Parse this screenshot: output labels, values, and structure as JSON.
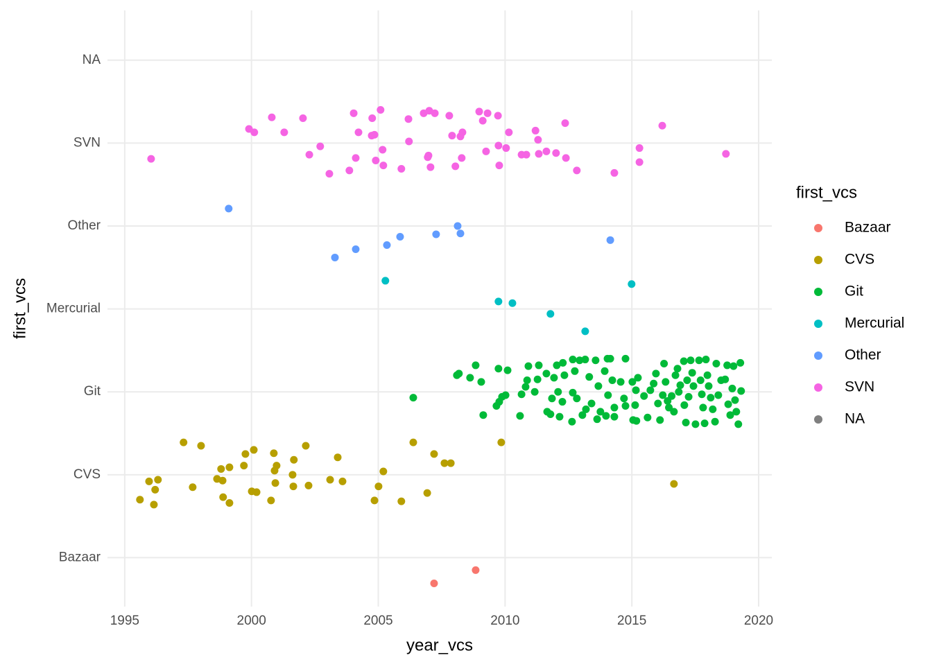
{
  "chart_data": {
    "type": "scatter",
    "x_label": "year_vcs",
    "y_label": "first_vcs",
    "legend_title": "first_vcs",
    "legend_position": "right",
    "grid": true,
    "xlim": [
      1994.32,
      2020.52
    ],
    "ylim": [
      0.41,
      7.6
    ],
    "xticks": [
      1995,
      2000,
      2005,
      2010,
      2015,
      2020
    ],
    "yticks": [
      {
        "value": 1,
        "label": "Bazaar"
      },
      {
        "value": 2,
        "label": "CVS"
      },
      {
        "value": 3,
        "label": "Git"
      },
      {
        "value": 4,
        "label": "Mercurial"
      },
      {
        "value": 5,
        "label": "Other"
      },
      {
        "value": 6,
        "label": "SVN"
      },
      {
        "value": 7,
        "label": "NA"
      }
    ],
    "series": [
      {
        "name": "Bazaar",
        "color": "#F8766D",
        "x": [
          2007.2,
          2008.84
        ],
        "y": [
          0.69,
          0.85
        ]
      },
      {
        "name": "CVS",
        "color": "#B79F00",
        "x": [
          1997.32,
          1998.01,
          1995.96,
          1996.31,
          1996.2,
          1995.6,
          1996.15,
          1997.68,
          1998.64,
          1998.86,
          1998.8,
          1999.13,
          1998.88,
          1999.13,
          1999.76,
          2000.09,
          1999.7,
          2000.01,
          2000.2,
          2000.77,
          2000.88,
          2000.99,
          2000.91,
          2000.94,
          2001.67,
          2001.62,
          2001.65,
          2002.14,
          2002.25,
          2003.1,
          2003.4,
          2003.59,
          2004.85,
          2005.01,
          2005.2,
          2005.91,
          2006.38,
          2007.2,
          2006.93,
          2007.61,
          2007.86,
          2009.85,
          2016.66
        ],
        "y": [
          2.39,
          2.35,
          1.92,
          1.94,
          1.82,
          1.7,
          1.64,
          1.85,
          1.95,
          1.93,
          2.07,
          2.09,
          1.73,
          1.66,
          2.25,
          2.3,
          2.11,
          1.8,
          1.79,
          1.69,
          2.26,
          2.11,
          2.05,
          1.9,
          2.18,
          2.0,
          1.86,
          2.35,
          1.87,
          1.94,
          2.21,
          1.92,
          1.69,
          1.86,
          2.04,
          1.68,
          2.39,
          2.25,
          1.78,
          2.14,
          2.14,
          2.39,
          1.89
        ]
      },
      {
        "name": "Git",
        "color": "#00BA38",
        "x": [
          2006.38,
          2008.1,
          2008.18,
          2008.62,
          2008.84,
          2009.06,
          2009.14,
          2009.66,
          2009.74,
          2009.77,
          2009.88,
          2010.1,
          2010.02,
          2010.59,
          2010.65,
          2010.81,
          2010.92,
          2010.87,
          2011.17,
          2011.28,
          2011.33,
          2011.66,
          2011.79,
          2011.63,
          2011.85,
          2011.93,
          2012.04,
          2012.15,
          2012.09,
          2012.28,
          2012.34,
          2012.26,
          2012.64,
          2012.67,
          2012.75,
          2012.83,
          2012.67,
          2012.94,
          2013.05,
          2013.16,
          2013.19,
          2013.32,
          2013.41,
          2013.57,
          2013.63,
          2013.68,
          2013.76,
          2013.93,
          2013.98,
          2014.04,
          2014.06,
          2014.15,
          2014.23,
          2014.31,
          2014.31,
          2014.56,
          2014.69,
          2014.75,
          2014.75,
          2015.02,
          2015.05,
          2015.16,
          2015.13,
          2015.18,
          2015.24,
          2015.48,
          2015.62,
          2015.73,
          2015.86,
          2015.95,
          2016.03,
          2016.11,
          2016.22,
          2016.27,
          2016.33,
          2016.41,
          2016.46,
          2016.57,
          2016.66,
          2016.72,
          2016.8,
          2016.85,
          2016.91,
          2017.05,
          2017.07,
          2017.13,
          2017.18,
          2017.24,
          2017.32,
          2017.38,
          2017.43,
          2017.51,
          2017.65,
          2017.71,
          2017.76,
          2017.81,
          2017.87,
          2017.92,
          2017.98,
          2018.03,
          2018.11,
          2018.19,
          2018.28,
          2018.33,
          2018.41,
          2018.52,
          2018.68,
          2018.76,
          2018.8,
          2018.88,
          2018.96,
          2019.01,
          2019.07,
          2019.2,
          2019.28,
          2019.31,
          2019.12
        ],
        "y": [
          2.93,
          3.2,
          3.22,
          3.17,
          3.32,
          3.12,
          2.72,
          2.83,
          3.28,
          2.88,
          2.94,
          3.26,
          2.96,
          2.71,
          2.97,
          3.06,
          3.31,
          3.14,
          3.0,
          3.15,
          3.32,
          2.76,
          2.73,
          3.22,
          2.92,
          3.17,
          3.32,
          2.7,
          3.0,
          3.35,
          3.2,
          2.88,
          2.64,
          2.99,
          3.25,
          2.92,
          3.39,
          3.38,
          2.72,
          3.39,
          2.79,
          3.18,
          2.86,
          3.38,
          2.67,
          3.07,
          2.76,
          3.25,
          2.71,
          3.4,
          2.96,
          3.4,
          3.14,
          2.7,
          2.81,
          3.12,
          2.92,
          3.4,
          2.83,
          3.12,
          2.66,
          3.02,
          2.84,
          2.65,
          3.17,
          2.95,
          2.69,
          3.02,
          3.1,
          3.22,
          2.86,
          2.66,
          2.96,
          3.34,
          3.12,
          2.89,
          2.81,
          2.95,
          2.76,
          3.2,
          3.28,
          3.0,
          3.08,
          3.37,
          2.84,
          2.63,
          3.14,
          2.94,
          3.38,
          3.23,
          3.07,
          2.61,
          3.38,
          3.14,
          2.97,
          2.81,
          2.62,
          3.39,
          3.2,
          3.07,
          2.93,
          2.79,
          2.64,
          3.34,
          2.96,
          3.14,
          3.15,
          3.32,
          2.85,
          2.72,
          3.04,
          3.31,
          2.9,
          2.61,
          3.35,
          3.01,
          2.76
        ]
      },
      {
        "name": "Mercurial",
        "color": "#00BFC4",
        "x": [
          2005.28,
          2009.74,
          2010.29,
          2011.79,
          2013.16,
          2014.99
        ],
        "y": [
          4.34,
          4.09,
          4.07,
          3.94,
          3.73,
          4.3
        ]
      },
      {
        "name": "Other",
        "color": "#619CFF",
        "x": [
          1999.1,
          2003.29,
          2004.11,
          2005.34,
          2005.86,
          2007.28,
          2008.13,
          2008.24,
          2014.15
        ],
        "y": [
          5.21,
          4.62,
          4.72,
          4.77,
          4.87,
          4.9,
          5.0,
          4.91,
          4.83
        ]
      },
      {
        "name": "SVN",
        "color": "#F564E3",
        "x": [
          1996.04,
          1999.9,
          2000.11,
          2000.8,
          2001.29,
          2002.03,
          2002.28,
          2002.71,
          2003.07,
          2003.86,
          2004.03,
          2004.11,
          2004.22,
          2004.76,
          2004.74,
          2004.85,
          2004.9,
          2005.09,
          2005.17,
          2005.2,
          2005.91,
          2006.19,
          2006.21,
          2006.79,
          2007.01,
          2007.23,
          2006.98,
          2007.06,
          2006.95,
          2007.8,
          2007.91,
          2008.04,
          2008.32,
          2008.24,
          2008.29,
          2008.98,
          2009.12,
          2009.31,
          2009.25,
          2009.72,
          2009.74,
          2009.77,
          2010.04,
          2010.15,
          2010.65,
          2010.84,
          2011.2,
          2011.3,
          2011.33,
          2011.63,
          2012.01,
          2012.37,
          2012.4,
          2012.83,
          2014.31,
          2015.3,
          2015.3,
          2016.2,
          2018.71
        ],
        "y": [
          5.81,
          6.17,
          6.13,
          6.31,
          6.13,
          6.3,
          5.86,
          5.96,
          5.63,
          5.67,
          6.36,
          5.82,
          6.13,
          6.3,
          6.09,
          6.1,
          5.79,
          6.4,
          5.92,
          5.73,
          5.69,
          6.29,
          6.02,
          6.36,
          6.39,
          6.36,
          5.85,
          5.71,
          5.83,
          6.33,
          6.09,
          5.72,
          6.13,
          6.08,
          5.82,
          6.38,
          6.27,
          6.36,
          5.9,
          6.33,
          5.97,
          5.73,
          5.94,
          6.13,
          5.86,
          5.86,
          6.15,
          6.04,
          5.87,
          5.9,
          5.88,
          6.24,
          5.82,
          5.67,
          5.64,
          5.94,
          5.77,
          6.21,
          5.87
        ]
      },
      {
        "name": "NA",
        "color": "#7F7F7F",
        "x": [],
        "y": []
      }
    ]
  }
}
